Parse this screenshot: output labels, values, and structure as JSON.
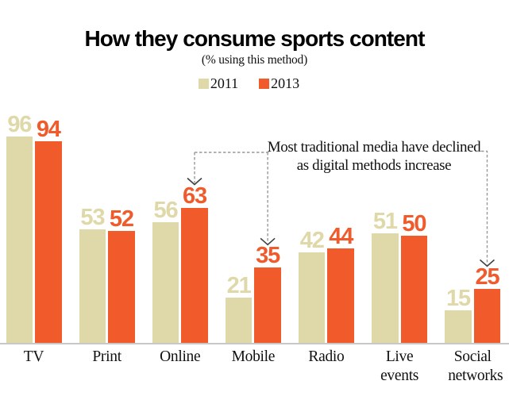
{
  "chart_data": {
    "type": "bar",
    "title": "How they consume sports content",
    "subtitle": "(% using this method)",
    "categories": [
      "TV",
      "Print",
      "Online",
      "Mobile",
      "Radio",
      "Live events",
      "Social networks"
    ],
    "series": [
      {
        "name": "2011",
        "color": "#dfd8a8",
        "values": [
          96,
          53,
          56,
          21,
          42,
          51,
          15
        ]
      },
      {
        "name": "2013",
        "color": "#f15b2c",
        "values": [
          94,
          52,
          63,
          35,
          44,
          50,
          25
        ]
      }
    ],
    "ylim": [
      0,
      100
    ],
    "grid": false,
    "legend_position": "top-center",
    "value_labels": true,
    "annotation": {
      "line1": "Most traditional media have declined",
      "line2": "as digital methods increase",
      "arrow_targets": [
        {
          "category": "Online",
          "series": "2013"
        },
        {
          "category": "Mobile",
          "series": "2013"
        },
        {
          "category": "Social networks",
          "series": "2013"
        }
      ]
    },
    "colors": {
      "baseline": "#c8c8c8",
      "dashed_line": "#999999",
      "arrowhead": "#404040",
      "text": "#111111",
      "title": "#000000"
    }
  }
}
